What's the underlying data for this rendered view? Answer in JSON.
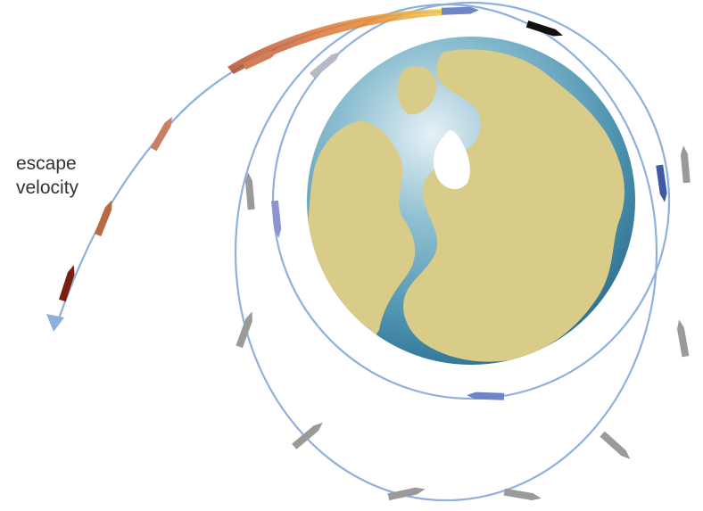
{
  "label": {
    "line1": "escape",
    "line2": "velocity"
  },
  "colors": {
    "orbit": "#8fb0dc",
    "ocean": "#5b9cb8",
    "land": "#d8cc88",
    "ice": "#ffffff",
    "rocket_grey": "#9a9a9a",
    "rocket_blue": "#6f86c6",
    "rocket_black": "#111111",
    "escape_gradient": [
      "#f3c84a",
      "#e98a2e",
      "#cf6b3e",
      "#c06a4c",
      "#7a1e12"
    ]
  }
}
